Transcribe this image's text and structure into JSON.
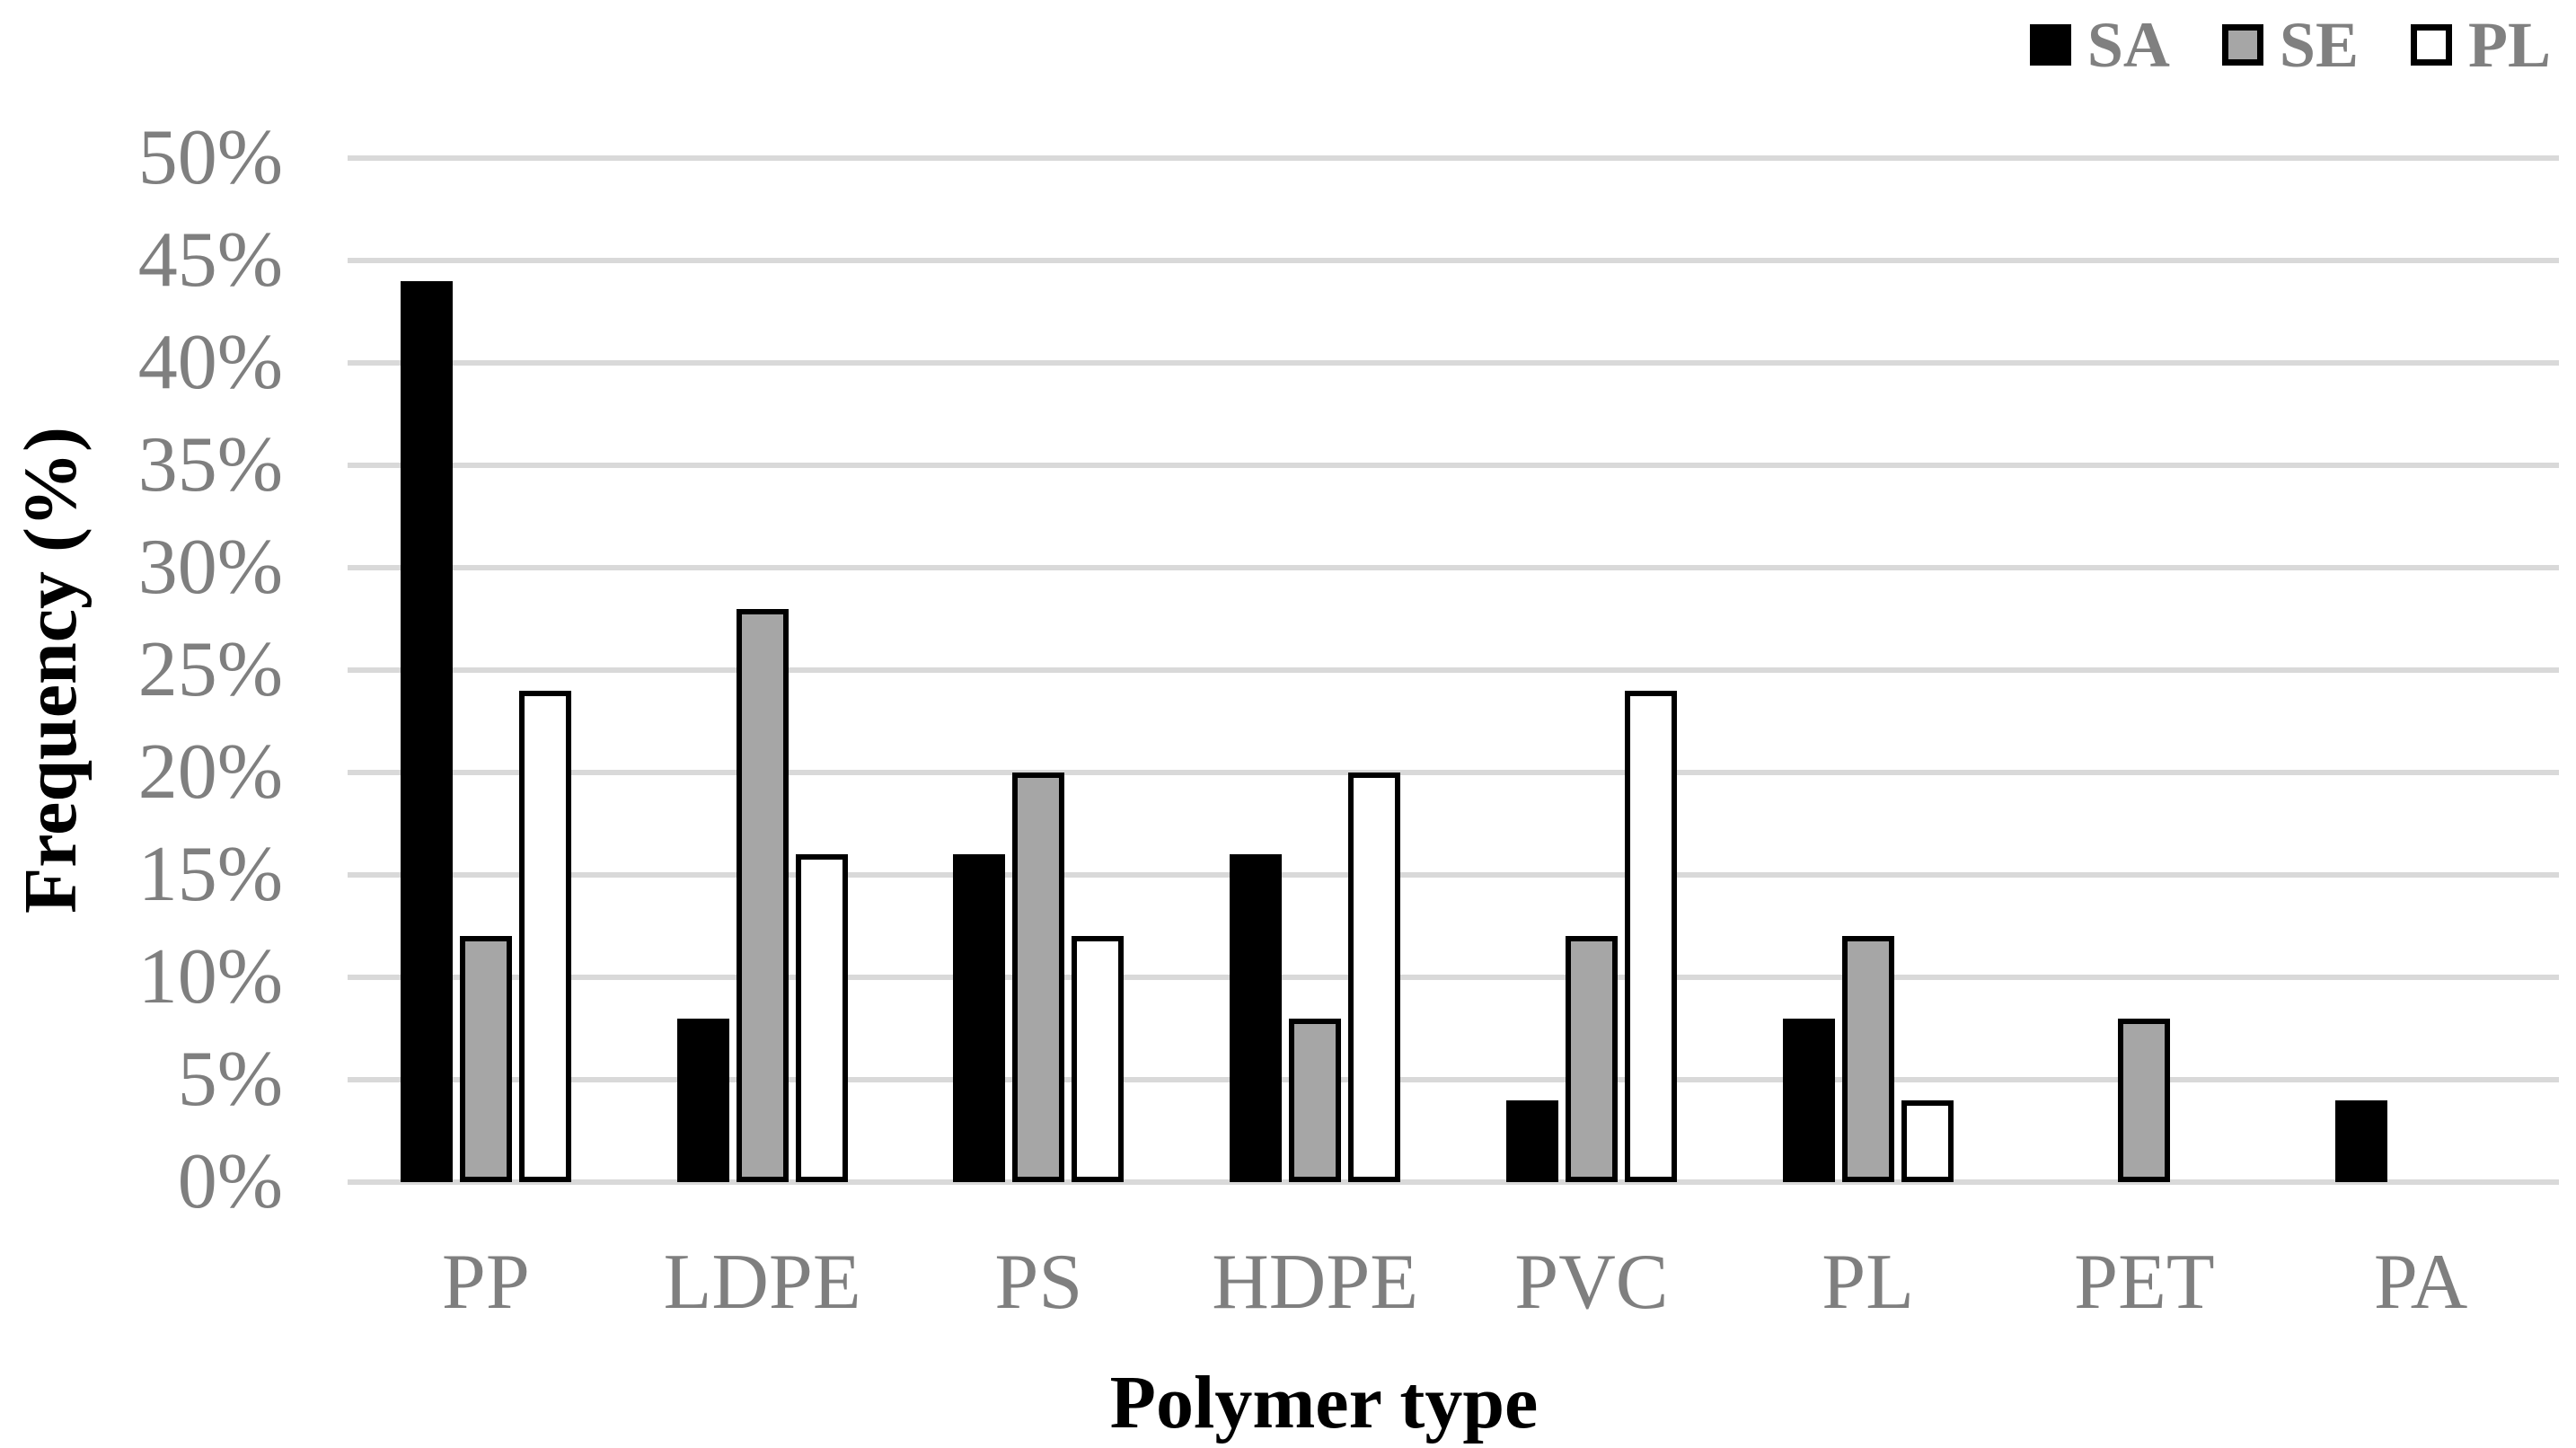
{
  "chart_data": {
    "type": "bar",
    "title": "",
    "xlabel": "Polymer type",
    "ylabel": "Frequency (%)",
    "categories": [
      "PP",
      "LDPE",
      "PS",
      "HDPE",
      "PVC",
      "PL",
      "PET",
      "PA"
    ],
    "series": [
      {
        "name": "SA",
        "fill": "#000000",
        "values": [
          44,
          8,
          16,
          16,
          4,
          8,
          0,
          4
        ]
      },
      {
        "name": "SE",
        "fill": "#a6a6a6",
        "values": [
          12,
          28,
          20,
          8,
          12,
          12,
          8,
          0
        ]
      },
      {
        "name": "PL",
        "fill": "#ffffff",
        "values": [
          24,
          16,
          12,
          20,
          24,
          4,
          0,
          0
        ]
      }
    ],
    "y_ticks": [
      "0%",
      "5%",
      "10%",
      "15%",
      "20%",
      "25%",
      "30%",
      "35%",
      "40%",
      "45%",
      "50%"
    ],
    "ylim": [
      0,
      50
    ],
    "y_step": 5,
    "grid": true,
    "legend_position": "top-right",
    "colors": {
      "grid": "#d9d9d9",
      "tick_text": "#7f7f7f",
      "category_text": "#7f7f7f",
      "legend_text": "#808080",
      "axis_title_text": "#000000",
      "bar_border": "#000000",
      "background": "#ffffff"
    }
  }
}
